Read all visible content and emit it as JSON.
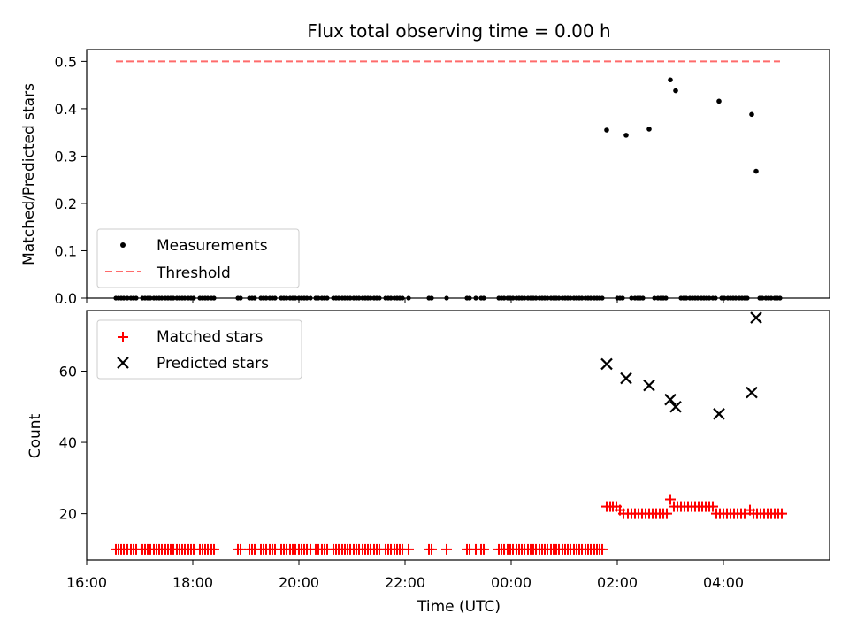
{
  "chart_data": [
    {
      "type": "scatter",
      "title": "Flux total observing time = 0.00 h",
      "xlabel": "",
      "ylabel": "Matched/Predicted stars",
      "xlim": [
        "16:00",
        "06:00"
      ],
      "ylim": [
        0,
        0.525
      ],
      "yticks": [
        "0.0",
        "0.1",
        "0.2",
        "0.3",
        "0.4",
        "0.5"
      ],
      "legend": {
        "placement": "lower-left",
        "entries": [
          "Measurements",
          "Threshold"
        ]
      },
      "series": [
        {
          "name": "Measurements",
          "color": "#000000",
          "marker": "dot",
          "points": [
            [
              "01:48",
              0.355
            ],
            [
              "02:10",
              0.344
            ],
            [
              "02:36",
              0.357
            ],
            [
              "03:00",
              0.461
            ],
            [
              "03:06",
              0.438
            ],
            [
              "03:55",
              0.416
            ],
            [
              "04:32",
              0.388
            ],
            [
              "04:37",
              0.268
            ]
          ],
          "zero_points": [
            "16:33",
            "16:36",
            "16:39",
            "16:42",
            "16:46",
            "16:50",
            "16:53",
            "16:56",
            "17:03",
            "17:06",
            "17:09",
            "17:12",
            "17:16",
            "17:19",
            "17:22",
            "17:25",
            "17:29",
            "17:32",
            "17:35",
            "17:38",
            "17:42",
            "17:45",
            "17:48",
            "17:51",
            "17:55",
            "17:58",
            "18:01",
            "18:08",
            "18:11",
            "18:14",
            "18:17",
            "18:21",
            "18:24",
            "18:51",
            "18:54",
            "19:04",
            "19:07",
            "19:10",
            "19:17",
            "19:20",
            "19:23",
            "19:27",
            "19:30",
            "19:33",
            "19:40",
            "19:43",
            "19:46",
            "19:50",
            "19:53",
            "19:56",
            "20:00",
            "20:03",
            "20:06",
            "20:09",
            "20:13",
            "20:19",
            "20:22",
            "20:26",
            "20:29",
            "20:32",
            "20:39",
            "20:42",
            "20:45",
            "20:49",
            "20:52",
            "20:55",
            "20:58",
            "21:02",
            "21:05",
            "21:08",
            "21:12",
            "21:15",
            "21:18",
            "21:21",
            "21:25",
            "21:28",
            "21:31",
            "21:38",
            "21:41",
            "21:44",
            "21:48",
            "21:51",
            "21:54",
            "21:57",
            "22:04",
            "22:27",
            "22:30",
            "22:47",
            "23:10",
            "23:13",
            "23:20",
            "23:26",
            "23:29",
            "23:46",
            "23:49",
            "23:52",
            "23:56",
            "23:59",
            "00:02",
            "00:06",
            "00:09",
            "00:12",
            "00:15",
            "00:19",
            "00:22",
            "00:25",
            "00:28",
            "00:32",
            "00:35",
            "00:38",
            "00:41",
            "00:45",
            "00:48",
            "00:51",
            "00:54",
            "00:58",
            "01:01",
            "01:04",
            "01:07",
            "01:11",
            "01:14",
            "01:17",
            "01:20",
            "01:24",
            "01:27",
            "01:30",
            "01:34",
            "01:37",
            "01:40",
            "01:43",
            "02:00",
            "02:03",
            "02:06",
            "02:16",
            "02:20",
            "02:23",
            "02:26",
            "02:29",
            "02:42",
            "02:46",
            "02:49",
            "02:52",
            "02:55",
            "03:12",
            "03:15",
            "03:18",
            "03:22",
            "03:25",
            "03:28",
            "03:31",
            "03:35",
            "03:38",
            "03:41",
            "03:44",
            "03:48",
            "03:51",
            "03:58",
            "04:01",
            "04:05",
            "04:08",
            "04:11",
            "04:14",
            "04:18",
            "04:21",
            "04:24",
            "04:27",
            "04:41",
            "04:44",
            "04:48",
            "04:51",
            "04:54",
            "04:58",
            "05:01",
            "05:04"
          ]
        },
        {
          "name": "Threshold",
          "color": "#ff6b6b",
          "style": "dashed",
          "x": [
            "16:33",
            "05:04"
          ],
          "y": [
            0.5,
            0.5
          ]
        }
      ]
    },
    {
      "type": "scatter",
      "title": "",
      "xlabel": "Time (UTC)",
      "ylabel": "Count",
      "xlim": [
        "16:00",
        "06:00"
      ],
      "ylim": [
        7,
        77
      ],
      "yticks": [
        "20",
        "40",
        "60"
      ],
      "xticks": [
        "16:00",
        "18:00",
        "20:00",
        "22:00",
        "00:00",
        "02:00",
        "04:00"
      ],
      "legend": {
        "placement": "upper-left",
        "entries": [
          "Matched stars",
          "Predicted stars"
        ]
      },
      "series": [
        {
          "name": "Matched stars",
          "color": "#ff0000",
          "marker": "plus",
          "baseline_value": 10,
          "baseline_points": "same times as Measurements zero_points before 01:48",
          "points": [
            [
              "01:48",
              22
            ],
            [
              "01:52",
              22
            ],
            [
              "01:55",
              22
            ],
            [
              "01:59",
              22
            ],
            [
              "02:03",
              21
            ],
            [
              "02:07",
              20
            ],
            [
              "02:12",
              20
            ],
            [
              "02:16",
              20
            ],
            [
              "02:20",
              20
            ],
            [
              "02:24",
              20
            ],
            [
              "02:28",
              20
            ],
            [
              "02:32",
              20
            ],
            [
              "02:36",
              20
            ],
            [
              "02:40",
              20
            ],
            [
              "02:44",
              20
            ],
            [
              "02:48",
              20
            ],
            [
              "02:52",
              20
            ],
            [
              "02:56",
              20
            ],
            [
              "03:00",
              24
            ],
            [
              "03:04",
              22
            ],
            [
              "03:08",
              22
            ],
            [
              "03:12",
              22
            ],
            [
              "03:16",
              22
            ],
            [
              "03:20",
              22
            ],
            [
              "03:24",
              22
            ],
            [
              "03:28",
              22
            ],
            [
              "03:32",
              22
            ],
            [
              "03:36",
              22
            ],
            [
              "03:40",
              22
            ],
            [
              "03:44",
              22
            ],
            [
              "03:48",
              22
            ],
            [
              "03:52",
              20
            ],
            [
              "03:56",
              20
            ],
            [
              "04:00",
              20
            ],
            [
              "04:04",
              20
            ],
            [
              "04:08",
              20
            ],
            [
              "04:12",
              20
            ],
            [
              "04:16",
              20
            ],
            [
              "04:20",
              20
            ],
            [
              "04:24",
              20
            ],
            [
              "04:30",
              21
            ],
            [
              "04:34",
              20
            ],
            [
              "04:38",
              20
            ],
            [
              "04:42",
              20
            ],
            [
              "04:46",
              20
            ],
            [
              "04:50",
              20
            ],
            [
              "04:54",
              20
            ],
            [
              "04:58",
              20
            ],
            [
              "05:02",
              20
            ],
            [
              "05:06",
              20
            ]
          ]
        },
        {
          "name": "Predicted stars",
          "color": "#000000",
          "marker": "x",
          "points": [
            [
              "01:48",
              62
            ],
            [
              "02:10",
              58
            ],
            [
              "02:36",
              56
            ],
            [
              "03:00",
              52
            ],
            [
              "03:06",
              50
            ],
            [
              "03:55",
              48
            ],
            [
              "04:32",
              54
            ],
            [
              "04:37",
              75
            ]
          ]
        }
      ]
    }
  ]
}
